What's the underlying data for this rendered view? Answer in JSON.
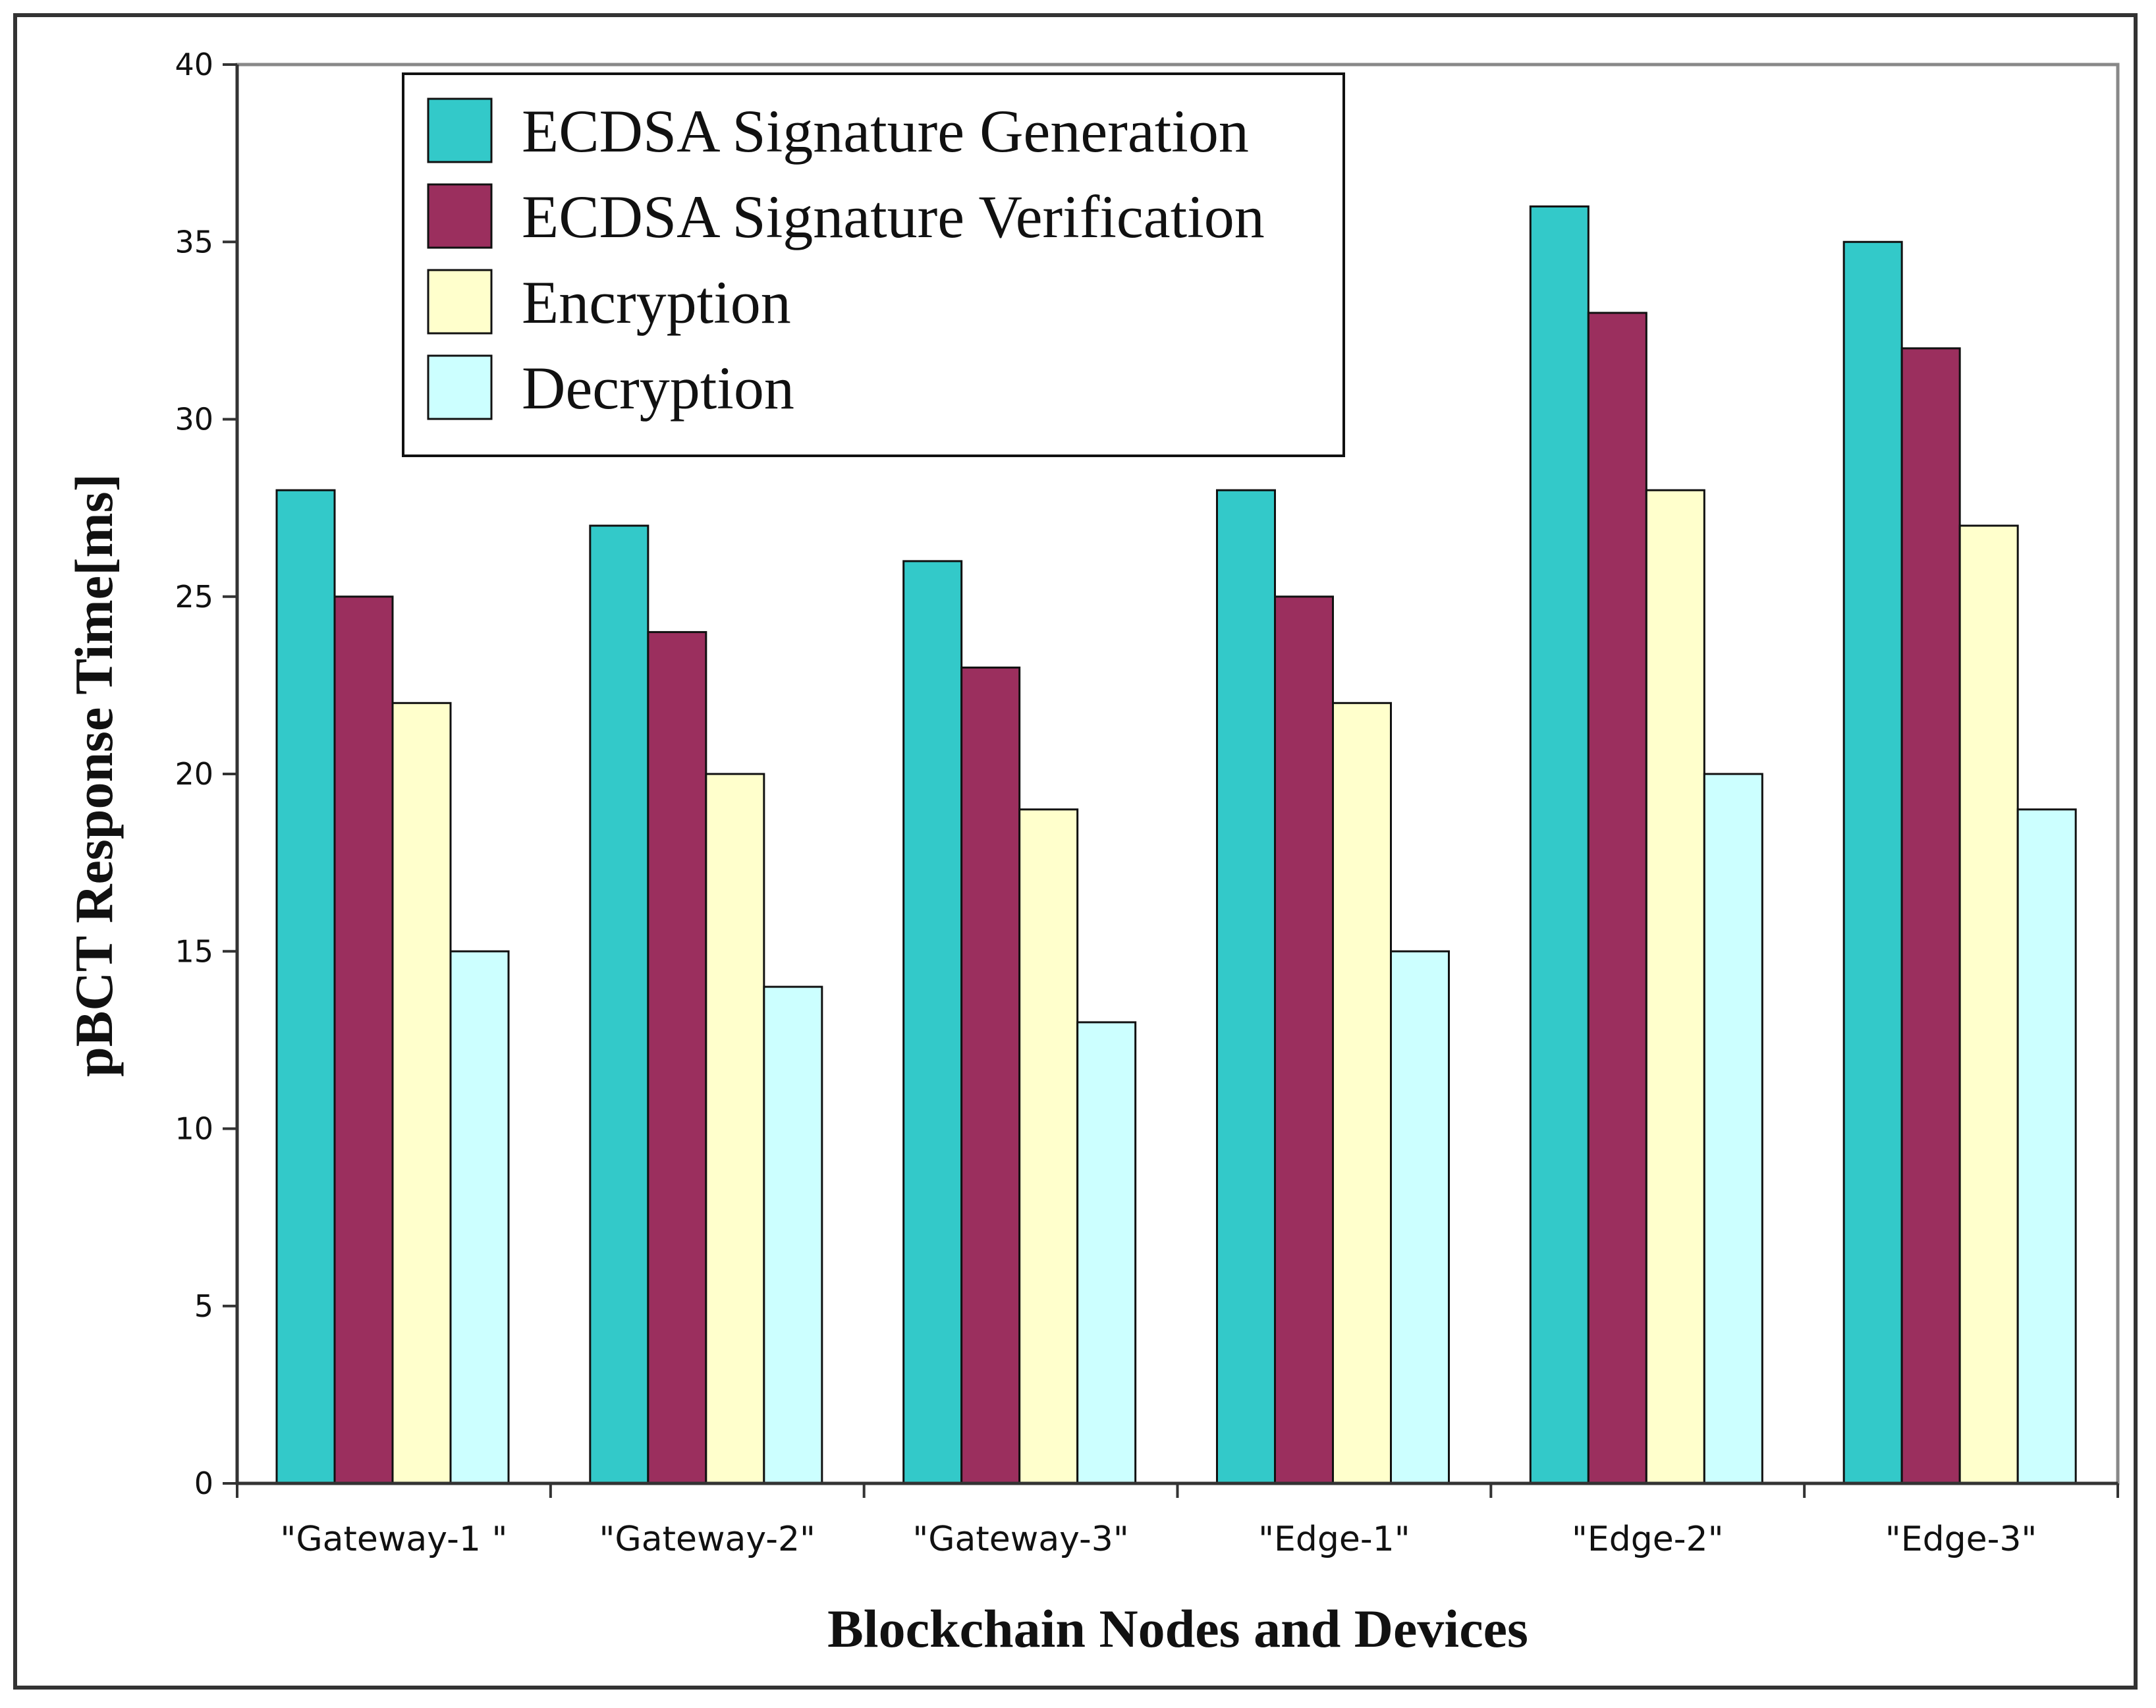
{
  "chart_data": {
    "type": "bar",
    "title": "",
    "xlabel": "Blockchain Nodes and Devices",
    "ylabel": "pBCT Response Time[ms]",
    "ylim": [
      0,
      40
    ],
    "yticks": [
      0,
      5,
      10,
      15,
      20,
      25,
      30,
      35,
      40
    ],
    "categories": [
      "\"Gateway-1 \"",
      "\"Gateway-2\"",
      "\"Gateway-3\"",
      "\"Edge-1\"",
      "\"Edge-2\"",
      "\"Edge-3\""
    ],
    "series": [
      {
        "name": "ECDSA Signature Generation",
        "color": "#33c9c9",
        "values": [
          28,
          27,
          26,
          28,
          36,
          35
        ]
      },
      {
        "name": "ECDSA Signature Verification",
        "color": "#9b2f5e",
        "values": [
          25,
          24,
          23,
          25,
          33,
          32
        ]
      },
      {
        "name": "Encryption",
        "color": "#ffffcc",
        "values": [
          22,
          20,
          19,
          22,
          28,
          27
        ]
      },
      {
        "name": "Decryption",
        "color": "#ccffff",
        "values": [
          15,
          14,
          13,
          15,
          20,
          19
        ]
      }
    ],
    "legend_position": "top-left",
    "grid": false
  }
}
